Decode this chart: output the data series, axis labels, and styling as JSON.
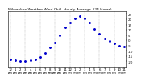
{
  "title": "Milwaukee Weather Wind Chill  Hourly Average  (24 Hours)",
  "x_hours": [
    0,
    1,
    2,
    3,
    4,
    5,
    6,
    7,
    8,
    9,
    10,
    11,
    12,
    13,
    14,
    15,
    16,
    17,
    18,
    19,
    20,
    21,
    22,
    23
  ],
  "wind_chill": [
    -18,
    -19,
    -20,
    -20,
    -19,
    -18,
    -16,
    -12,
    -7,
    -2,
    5,
    12,
    17,
    21,
    23,
    21,
    17,
    11,
    6,
    2,
    -1,
    -3,
    -5,
    -6
  ],
  "dot_color": "#0000cc",
  "bg_color": "#ffffff",
  "grid_color": "#999999",
  "title_color": "#000000",
  "tick_color": "#000000",
  "ylim": [
    -25,
    28
  ],
  "xlim": [
    -0.5,
    23.5
  ],
  "title_fontsize": 3.2,
  "tick_fontsize": 2.8,
  "y_ticks": [
    -20,
    -15,
    -10,
    -5,
    0,
    5,
    10,
    15,
    20,
    25
  ],
  "x_ticks": [
    0,
    1,
    2,
    3,
    4,
    5,
    6,
    7,
    8,
    9,
    10,
    11,
    12,
    13,
    14,
    15,
    16,
    17,
    18,
    19,
    20,
    21,
    22,
    23
  ],
  "grid_hours": [
    0,
    3,
    6,
    9,
    12,
    15,
    18,
    21
  ]
}
